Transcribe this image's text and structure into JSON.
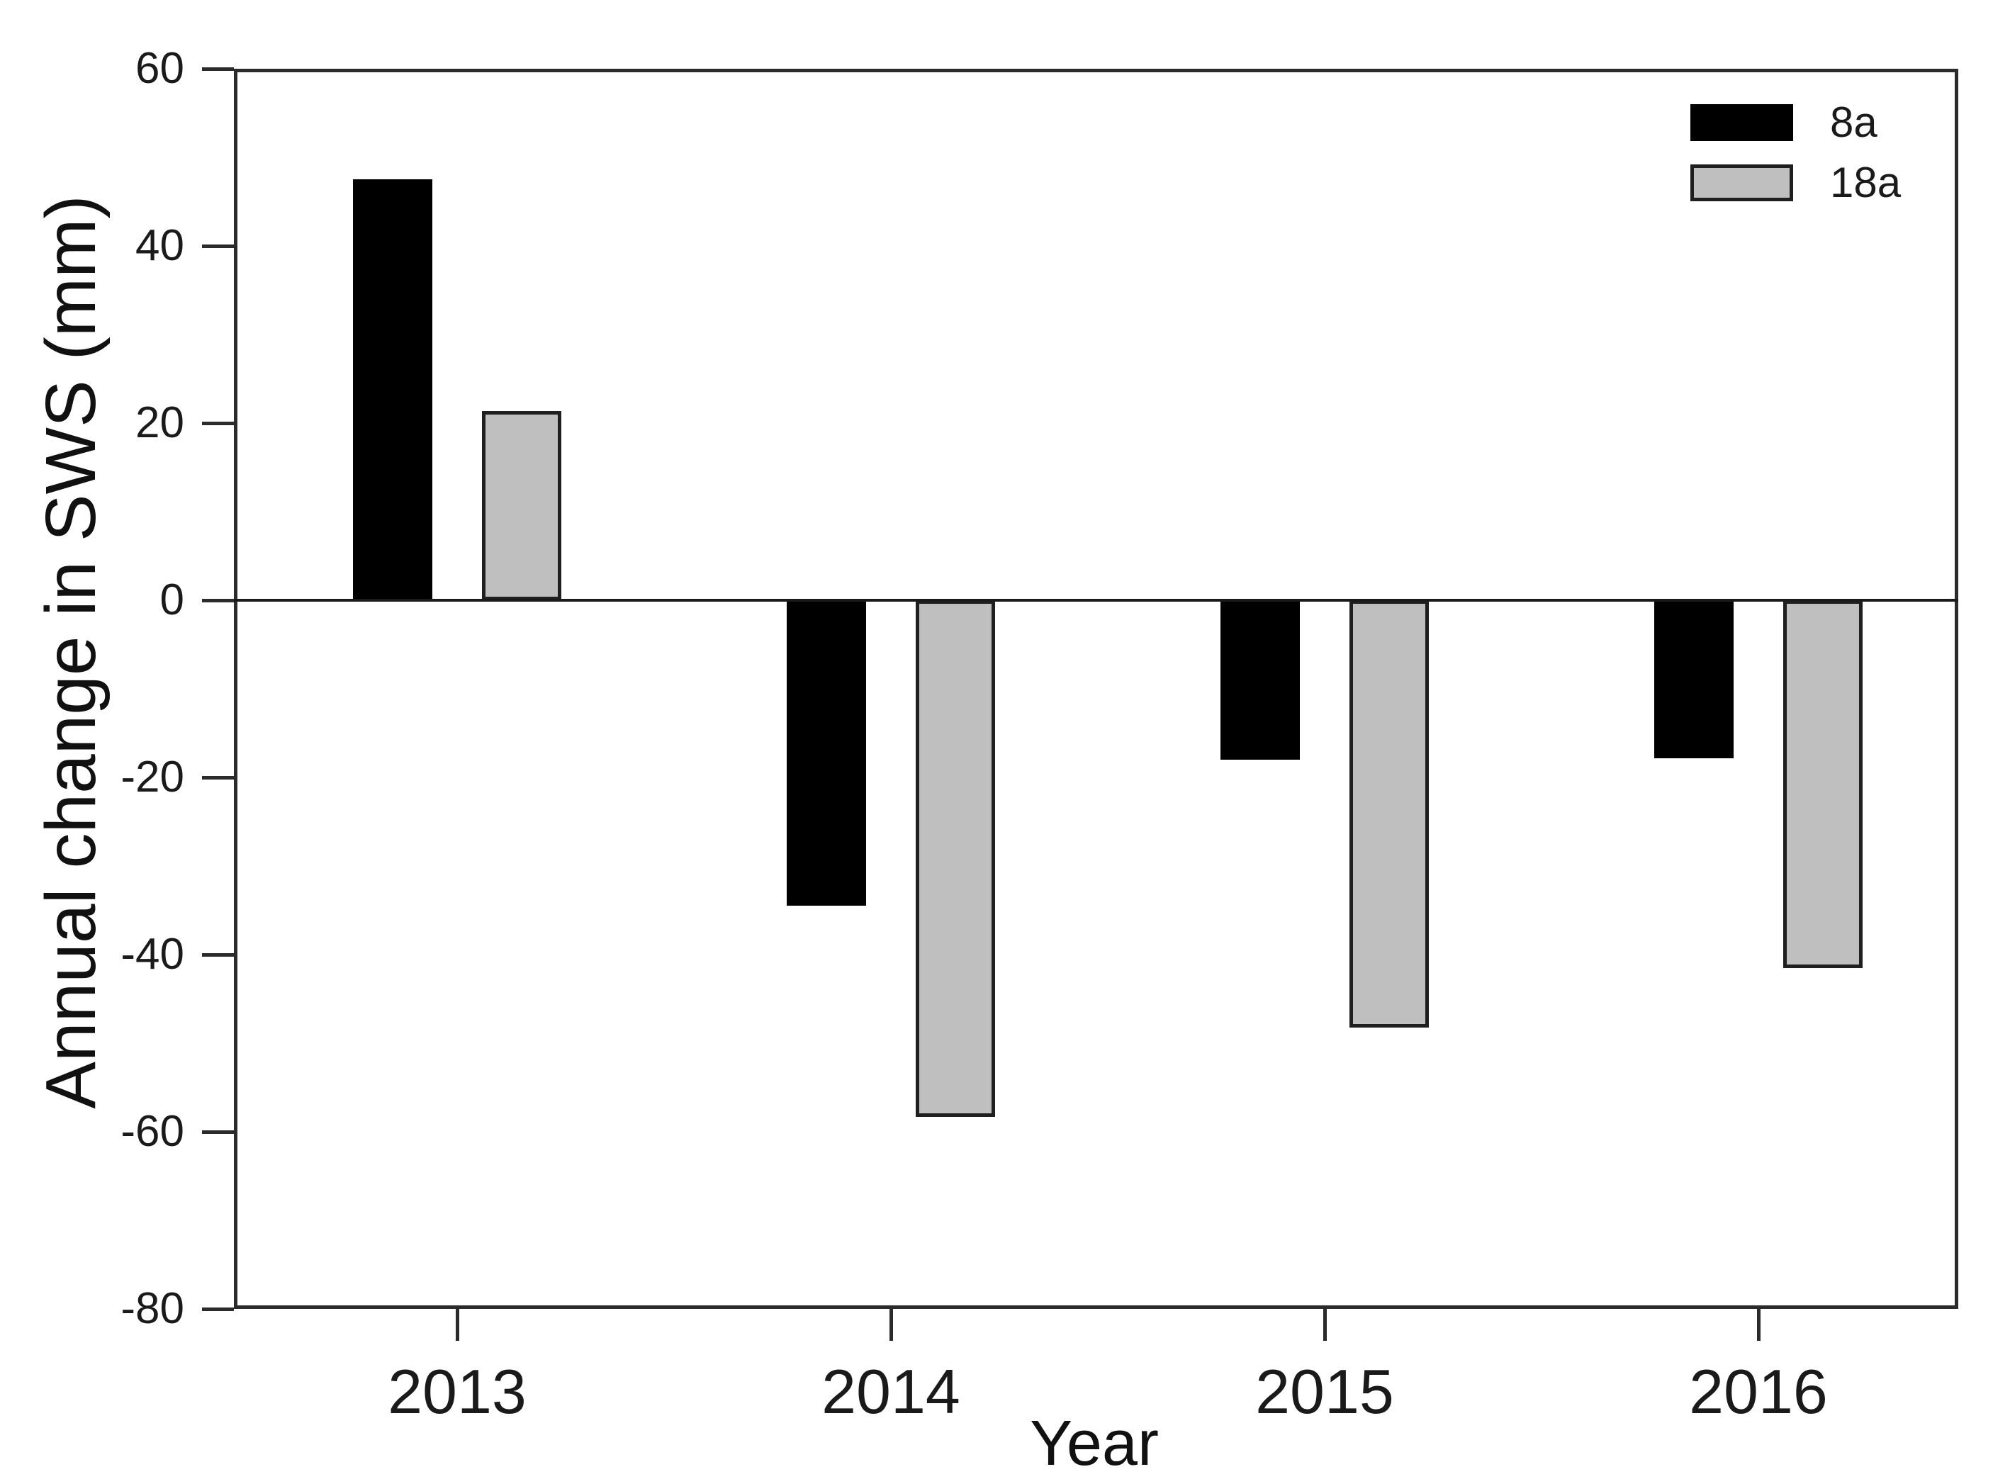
{
  "figure": {
    "background": "#ffffff",
    "frame_color": "#2b2b2b",
    "text_color": "#1a1a1a"
  },
  "chart_data": {
    "type": "bar",
    "title": "",
    "xlabel": "Year",
    "ylabel": "Annual change in SWS (mm)",
    "categories": [
      "2013",
      "2014",
      "2015",
      "2016"
    ],
    "series": [
      {
        "name": "8a",
        "fill": "#000000",
        "border": "#000000",
        "values": [
          47.5,
          -34.5,
          -18.0,
          -17.8
        ]
      },
      {
        "name": "18a",
        "fill": "#bfbfbf",
        "border": "#1f1f1f",
        "values": [
          21.4,
          -58.3,
          -48.2,
          -41.5
        ]
      }
    ],
    "ylim": [
      -80,
      60
    ],
    "yticks": [
      60,
      40,
      20,
      0,
      -20,
      -40,
      -60,
      -80
    ],
    "ytick_step": 20,
    "grid": false,
    "zero_line": true,
    "legend_position": "top-right",
    "legend": [
      "8a",
      "18a"
    ]
  }
}
